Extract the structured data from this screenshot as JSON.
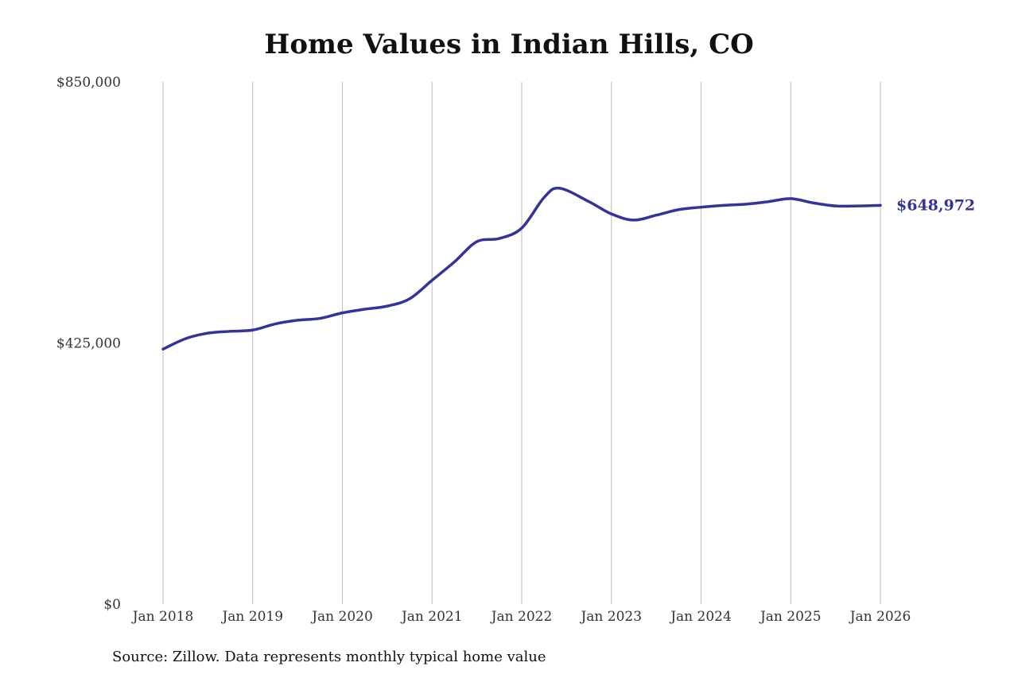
{
  "chart_data": {
    "type": "line",
    "title": "Home Values in Indian Hills, CO",
    "source_note": "Source: Zillow. Data represents monthly typical home value",
    "xlabel": "",
    "ylabel": "",
    "ylim": [
      0,
      850000
    ],
    "y_ticks": [
      {
        "value": 0,
        "label": "$0"
      },
      {
        "value": 425000,
        "label": "$425,000"
      },
      {
        "value": 850000,
        "label": "$850,000"
      }
    ],
    "x_range": [
      2018.0,
      2026.0
    ],
    "x_ticks": [
      {
        "value": 2018,
        "label": "Jan 2018"
      },
      {
        "value": 2019,
        "label": "Jan 2019"
      },
      {
        "value": 2020,
        "label": "Jan 2020"
      },
      {
        "value": 2021,
        "label": "Jan 2021"
      },
      {
        "value": 2022,
        "label": "Jan 2022"
      },
      {
        "value": 2023,
        "label": "Jan 2023"
      },
      {
        "value": 2024,
        "label": "Jan 2024"
      },
      {
        "value": 2025,
        "label": "Jan 2025"
      },
      {
        "value": 2026,
        "label": "Jan 2026"
      }
    ],
    "grid": {
      "vertical": true,
      "horizontal": false
    },
    "colors": {
      "line": "#33339a",
      "grid": "#bdbdbd",
      "text": "#333333"
    },
    "end_label": "$648,972",
    "series": [
      {
        "values": [
          {
            "x": 2018.0,
            "y": 415000
          },
          {
            "x": 2018.25,
            "y": 432000
          },
          {
            "x": 2018.5,
            "y": 441000
          },
          {
            "x": 2018.75,
            "y": 444000
          },
          {
            "x": 2019.0,
            "y": 446000
          },
          {
            "x": 2019.25,
            "y": 456000
          },
          {
            "x": 2019.5,
            "y": 462000
          },
          {
            "x": 2019.75,
            "y": 465000
          },
          {
            "x": 2020.0,
            "y": 474000
          },
          {
            "x": 2020.25,
            "y": 480000
          },
          {
            "x": 2020.5,
            "y": 485000
          },
          {
            "x": 2020.75,
            "y": 497000
          },
          {
            "x": 2021.0,
            "y": 527000
          },
          {
            "x": 2021.25,
            "y": 557000
          },
          {
            "x": 2021.5,
            "y": 590000
          },
          {
            "x": 2021.75,
            "y": 595000
          },
          {
            "x": 2022.0,
            "y": 612000
          },
          {
            "x": 2022.25,
            "y": 662000
          },
          {
            "x": 2022.42,
            "y": 677000
          },
          {
            "x": 2022.75,
            "y": 655000
          },
          {
            "x": 2023.0,
            "y": 635000
          },
          {
            "x": 2023.25,
            "y": 625000
          },
          {
            "x": 2023.5,
            "y": 633000
          },
          {
            "x": 2023.75,
            "y": 642000
          },
          {
            "x": 2024.0,
            "y": 646000
          },
          {
            "x": 2024.25,
            "y": 649000
          },
          {
            "x": 2024.5,
            "y": 651000
          },
          {
            "x": 2024.75,
            "y": 655000
          },
          {
            "x": 2025.0,
            "y": 660000
          },
          {
            "x": 2025.25,
            "y": 653000
          },
          {
            "x": 2025.5,
            "y": 648000
          },
          {
            "x": 2025.75,
            "y": 648000
          },
          {
            "x": 2026.0,
            "y": 648972
          }
        ]
      }
    ]
  }
}
